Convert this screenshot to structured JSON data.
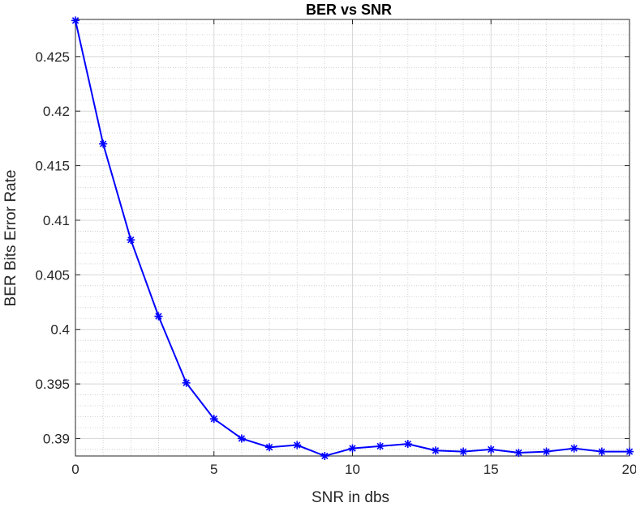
{
  "chart_data": {
    "type": "line",
    "title": "BER vs SNR",
    "xlabel": "SNR in dbs",
    "ylabel": "BER Bits Error Rate",
    "xlim": [
      0,
      20
    ],
    "ylim": [
      0.3884,
      0.4284
    ],
    "xticks": [
      0,
      5,
      10,
      15,
      20
    ],
    "xtick_labels": [
      "0",
      "5",
      "10",
      "15",
      "20"
    ],
    "yticks": [
      0.39,
      0.395,
      0.4,
      0.405,
      0.41,
      0.415,
      0.42,
      0.425
    ],
    "ytick_labels": [
      "0.39",
      "0.395",
      "0.4",
      "0.405",
      "0.41",
      "0.415",
      "0.42",
      "0.425"
    ],
    "grid": true,
    "minor_grid": true,
    "series": [
      {
        "marker": "asterisk",
        "color": "#0000ff",
        "x": [
          0,
          1,
          2,
          3,
          4,
          5,
          6,
          7,
          8,
          9,
          10,
          11,
          12,
          13,
          14,
          15,
          16,
          17,
          18,
          19,
          20
        ],
        "y": [
          0.4283,
          0.417,
          0.4082,
          0.4012,
          0.3951,
          0.3918,
          0.39,
          0.3892,
          0.3894,
          0.3884,
          0.3891,
          0.3893,
          0.3895,
          0.3889,
          0.3888,
          0.389,
          0.3887,
          0.3888,
          0.3891,
          0.3888,
          0.3888
        ]
      }
    ]
  }
}
